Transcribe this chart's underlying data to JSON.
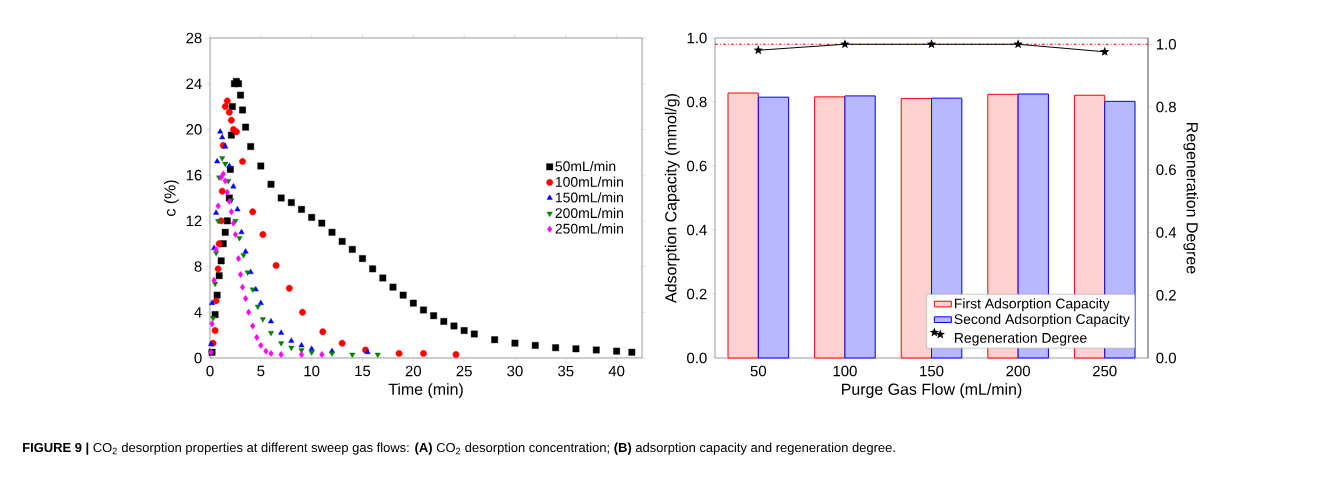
{
  "chart_data": [
    {
      "type": "scatter",
      "xlabel": "Time (min)",
      "ylabel": "c (%)",
      "xlim": [
        0,
        42.5
      ],
      "ylim": [
        0,
        28
      ],
      "xticks": [
        0,
        5,
        10,
        15,
        20,
        25,
        30,
        35,
        40
      ],
      "yticks": [
        0,
        4,
        8,
        12,
        16,
        20,
        24,
        28
      ],
      "legend": "right",
      "annotations": [
        "**FIGURE 9 |** CO$_{2}$ desorption properties at different sweep gas flows: **(A)** CO$_{2}$ desorption concentration; **(B)** adsorption capacity and regeneration degree."
      ],
      "series": [
        {
          "name": "50mL/min",
          "color": "#000000",
          "marker": "square",
          "x": [
            0.2,
            0.5,
            0.7,
            0.9,
            1.1,
            1.3,
            1.5,
            1.7,
            1.9,
            2.0,
            2.1,
            2.2,
            2.4,
            2.6,
            2.8,
            3.0,
            3.2,
            3.5,
            4,
            5,
            6,
            7,
            8,
            9,
            10,
            11,
            12,
            13,
            14,
            15,
            16,
            17,
            18,
            19,
            20,
            21,
            22,
            23,
            24,
            25,
            26,
            28,
            30,
            32,
            34,
            36,
            38,
            40,
            41.5
          ],
          "values": [
            0.5,
            3.8,
            5.5,
            7.2,
            8.5,
            10,
            11,
            12,
            14,
            16.5,
            19.5,
            22,
            24,
            24.2,
            24,
            23,
            21.7,
            20.2,
            18.5,
            16.8,
            15.2,
            14,
            13.6,
            13,
            12.3,
            11.8,
            11,
            10.2,
            9.5,
            8.7,
            7.8,
            7,
            6.2,
            5.5,
            4.8,
            4.2,
            3.7,
            3.2,
            2.8,
            2.4,
            2.1,
            1.6,
            1.3,
            1.1,
            0.9,
            0.8,
            0.7,
            0.6,
            0.5
          ]
        },
        {
          "name": "100mL/min",
          "color": "#ff0000",
          "marker": "circle",
          "x": [
            0.3,
            0.5,
            0.6,
            0.8,
            0.9,
            1.1,
            1.2,
            1.3,
            1.5,
            1.7,
            1.9,
            2.1,
            2.3,
            2.6,
            3.2,
            4.2,
            5.2,
            6.5,
            7.8,
            9.1,
            11.1,
            13,
            15.3,
            18.6,
            21,
            24.2
          ],
          "values": [
            1.3,
            2.4,
            5,
            7.8,
            10,
            12,
            14.6,
            18.6,
            22,
            22.5,
            21.5,
            20.8,
            20,
            19.8,
            17.2,
            12.8,
            10.8,
            8.1,
            6.1,
            4,
            2.3,
            1.3,
            0.7,
            0.4,
            0.4,
            0.3
          ]
        },
        {
          "name": "150mL/min",
          "color": "#0000ff",
          "marker": "triangle",
          "x": [
            0.1,
            0.2,
            0.4,
            0.6,
            0.7,
            1.0,
            1.2,
            1.5,
            1.9,
            2.3,
            2.7,
            3.1,
            3.5,
            4,
            4.5,
            5,
            6,
            7,
            8,
            9,
            10,
            12,
            15.5
          ],
          "values": [
            1.2,
            4.8,
            9.6,
            12.7,
            17.2,
            19.8,
            19.3,
            18.5,
            16.8,
            15,
            13,
            11,
            9.3,
            7.5,
            6,
            4.8,
            3.2,
            2.2,
            1.5,
            1.1,
            0.8,
            0.6,
            0.5
          ]
        },
        {
          "name": "200mL/min",
          "color": "#008000",
          "marker": "triangle-down",
          "x": [
            0.1,
            0.3,
            0.5,
            0.6,
            0.8,
            0.9,
            1.2,
            1.5,
            1.8,
            2.1,
            2.5,
            2.9,
            3.3,
            3.7,
            4.2,
            4.7,
            5.2,
            6,
            7,
            8,
            9,
            10,
            12,
            14,
            16.5
          ],
          "values": [
            0.5,
            3.5,
            6.5,
            9.2,
            12,
            15.8,
            17.5,
            17,
            15.5,
            13.8,
            12,
            10.5,
            9,
            7.5,
            6,
            4.5,
            3.4,
            2.2,
            1.3,
            0.9,
            0.7,
            0.5,
            0.4,
            0.3,
            0.3
          ]
        },
        {
          "name": "250mL/min",
          "color": "#ff00ff",
          "marker": "diamond",
          "x": [
            0.1,
            0.2,
            0.4,
            0.6,
            0.8,
            1.1,
            1.3,
            1.5,
            1.7,
            1.9,
            2.1,
            2.3,
            2.5,
            2.8,
            3.0,
            3.2,
            3.5,
            3.8,
            4.2,
            4.6,
            5,
            5.5,
            6,
            7,
            9,
            11
          ],
          "values": [
            0.5,
            3,
            6.8,
            9.5,
            13.3,
            15.8,
            16.1,
            15.5,
            14.5,
            13.7,
            12.8,
            11.8,
            10.8,
            8.7,
            7.3,
            6.2,
            5.2,
            4,
            2.8,
            1.8,
            1.1,
            0.6,
            0.4,
            0.3,
            0.3,
            0.3
          ]
        }
      ]
    },
    {
      "type": "bar",
      "xlabel": "Purge Gas Flow (mL/min)",
      "ylabel": "Adsorption Capacity (mmol/g)",
      "y2label": "Regeneration Degree",
      "categories": [
        "50",
        "100",
        "150",
        "200",
        "250"
      ],
      "ylim": [
        0,
        1
      ],
      "yticks": [
        {
          "value": 0,
          "label": "0.0"
        },
        {
          "value": 0.2,
          "label": "0.2"
        },
        {
          "value": 0.4,
          "label": "0.4"
        },
        {
          "value": 0.6,
          "label": "0.6"
        },
        {
          "value": 0.8,
          "label": "0.8"
        },
        {
          "value": 1,
          "label": "1.0"
        }
      ],
      "y2lim": [
        0,
        1.02
      ],
      "y2ticks": [
        {
          "value": 0,
          "label": "0.0"
        },
        {
          "value": 0.2,
          "label": "0.2"
        },
        {
          "value": 0.4,
          "label": "0.4"
        },
        {
          "value": 0.6,
          "label": "0.6"
        },
        {
          "value": 0.8,
          "label": "0.8"
        },
        {
          "value": 1,
          "label": "1.0"
        }
      ],
      "legend": "bottom right",
      "ref_lines": [
        {
          "axis": "y2",
          "value": 1.0,
          "color": "#ff0000",
          "line_style": "dashdot"
        }
      ],
      "series": [
        {
          "name": "First Adsorption Capacity",
          "color": "#ff0000",
          "values": [
            0.828,
            0.816,
            0.811,
            0.824,
            0.821
          ]
        },
        {
          "name": "Second Adsorption Capacity",
          "color": "#0000ff",
          "values": [
            0.815,
            0.819,
            0.812,
            0.825,
            0.802
          ]
        },
        {
          "name": "Regeneration Degree",
          "color": "#000000",
          "type": "line",
          "axis": "y2",
          "marker": "star",
          "values": [
            0.981,
            1.0,
            1.0,
            1.0,
            0.976
          ]
        }
      ]
    }
  ]
}
